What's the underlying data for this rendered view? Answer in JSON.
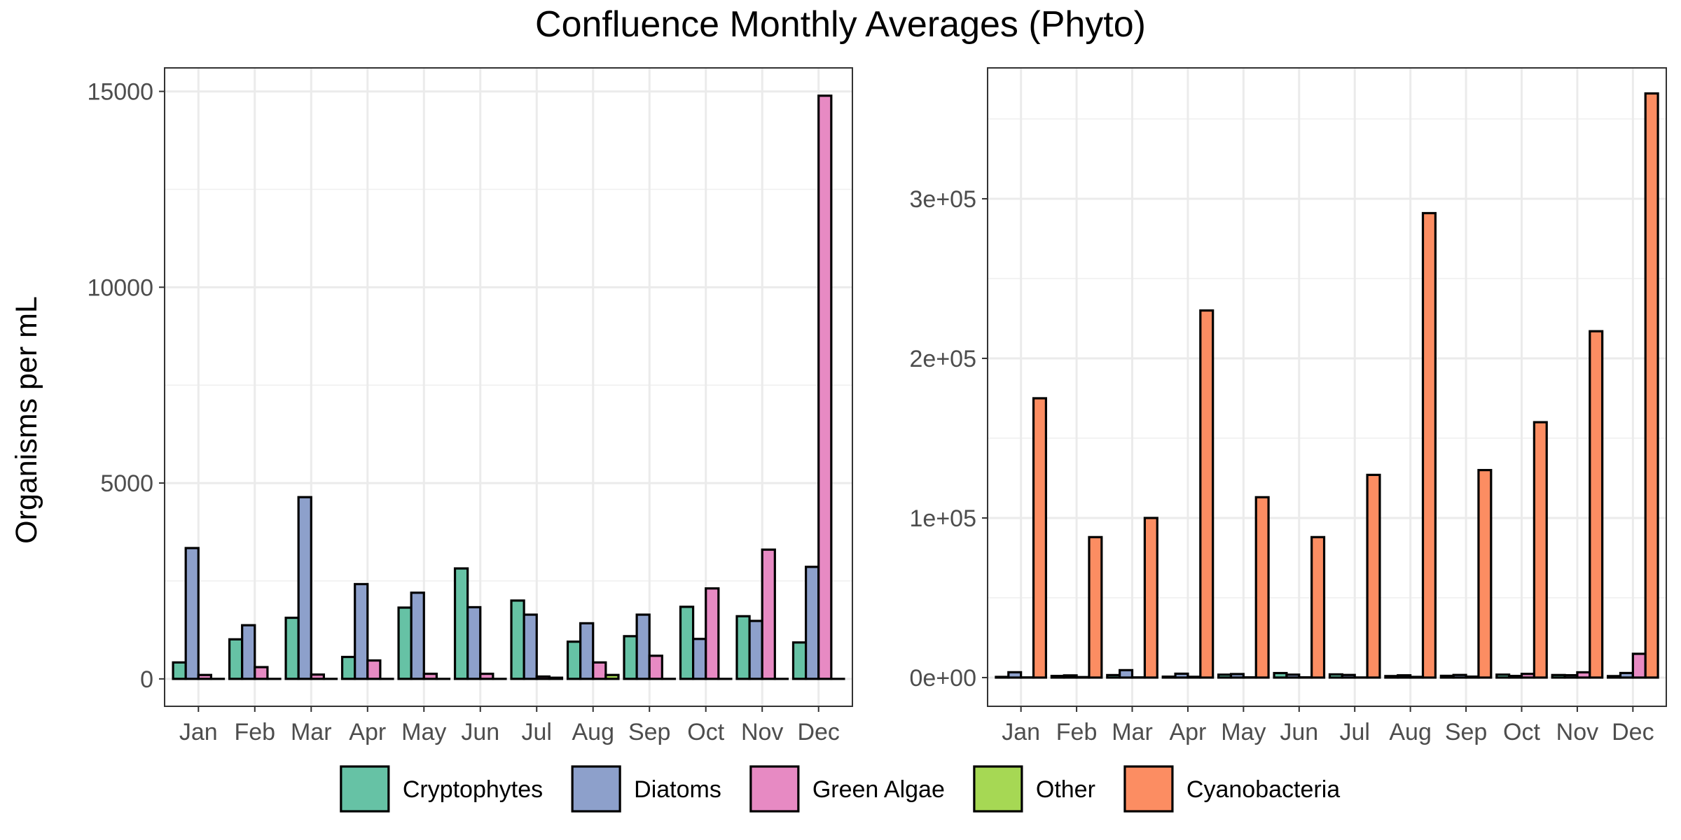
{
  "title": "Confluence Monthly Averages (Phyto)",
  "ylabel": "Organisms per mL",
  "categories": [
    "Jan",
    "Feb",
    "Mar",
    "Apr",
    "May",
    "Jun",
    "Jul",
    "Aug",
    "Sep",
    "Oct",
    "Nov",
    "Dec"
  ],
  "legend": {
    "placement": "bottom",
    "items": [
      {
        "name": "Cryptophytes",
        "color": "#66C2A5"
      },
      {
        "name": "Diatoms",
        "color": "#8DA0CB"
      },
      {
        "name": "Green Algae",
        "color": "#E78AC3"
      },
      {
        "name": "Other",
        "color": "#A6D854"
      },
      {
        "name": "Cyanobacteria",
        "color": "#FC8D62"
      }
    ]
  },
  "chart_data": [
    {
      "type": "bar",
      "position": "left",
      "categories": [
        "Jan",
        "Feb",
        "Mar",
        "Apr",
        "May",
        "Jun",
        "Jul",
        "Aug",
        "Sep",
        "Oct",
        "Nov",
        "Dec"
      ],
      "ylim": [
        -700,
        15600
      ],
      "yticks": [
        0,
        5000,
        10000,
        15000
      ],
      "ytick_labels": [
        "0",
        "5000",
        "10000",
        "15000"
      ],
      "grid": true,
      "series": [
        {
          "name": "Cryptophytes",
          "color": "#66C2A5",
          "values": [
            420,
            1010,
            1560,
            560,
            1820,
            2820,
            2000,
            950,
            1090,
            1840,
            1600,
            930
          ]
        },
        {
          "name": "Diatoms",
          "color": "#8DA0CB",
          "values": [
            3340,
            1370,
            4640,
            2420,
            2200,
            1830,
            1640,
            1420,
            1640,
            1020,
            1480,
            2860
          ]
        },
        {
          "name": "Green Algae",
          "color": "#E78AC3",
          "values": [
            100,
            300,
            110,
            470,
            130,
            130,
            60,
            420,
            590,
            2310,
            3300,
            14890
          ]
        },
        {
          "name": "Other",
          "color": "#A6D854",
          "values": [
            0,
            0,
            0,
            0,
            0,
            0,
            30,
            100,
            0,
            0,
            0,
            0
          ]
        }
      ]
    },
    {
      "type": "bar",
      "position": "right",
      "categories": [
        "Jan",
        "Feb",
        "Mar",
        "Apr",
        "May",
        "Jun",
        "Jul",
        "Aug",
        "Sep",
        "Oct",
        "Nov",
        "Dec"
      ],
      "ylim": [
        -18000,
        382000
      ],
      "yticks": [
        0,
        100000,
        200000,
        300000
      ],
      "ytick_labels": [
        "0e+00",
        "1e+05",
        "2e+05",
        "3e+05"
      ],
      "grid": true,
      "series": [
        {
          "name": "Cryptophytes",
          "color": "#66C2A5",
          "values": [
            420,
            1010,
            1560,
            560,
            1820,
            2820,
            2000,
            950,
            1090,
            1840,
            1600,
            930
          ]
        },
        {
          "name": "Diatoms",
          "color": "#8DA0CB",
          "values": [
            3340,
            1370,
            4640,
            2420,
            2200,
            1830,
            1640,
            1420,
            1640,
            1020,
            1480,
            2860
          ]
        },
        {
          "name": "Green Algae",
          "color": "#E78AC3",
          "values": [
            100,
            300,
            110,
            470,
            130,
            130,
            60,
            420,
            590,
            2310,
            3300,
            14890
          ]
        },
        {
          "name": "Cyanobacteria",
          "color": "#FC8D62",
          "values": [
            175000,
            88000,
            100000,
            230000,
            113000,
            88000,
            127000,
            291000,
            130000,
            160000,
            217000,
            366000
          ]
        }
      ]
    }
  ]
}
